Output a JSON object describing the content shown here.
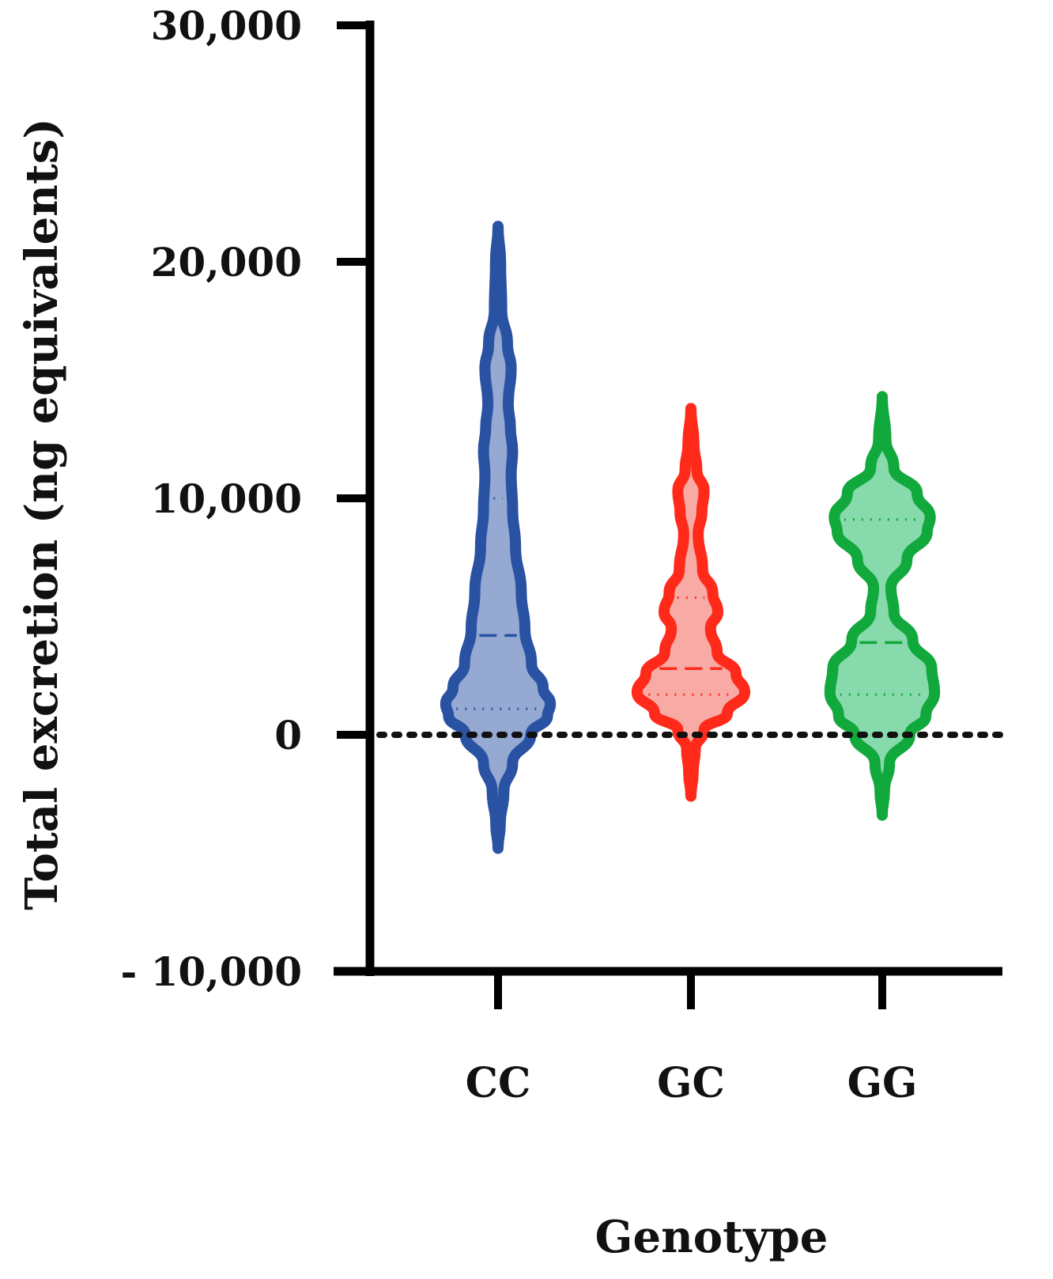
{
  "chart_data": {
    "type": "violin",
    "xlabel": "Genotype",
    "ylabel": "Total excretion (ng equivalents)",
    "ylim": [
      -10000,
      30000
    ],
    "yticks": [
      {
        "value": 30000,
        "label": "30,000"
      },
      {
        "value": 20000,
        "label": "20,000"
      },
      {
        "value": 10000,
        "label": "10,000"
      },
      {
        "value": 0,
        "label": "0"
      },
      {
        "value": -10000,
        "label": "- 10,000"
      }
    ],
    "reference_line": {
      "value": 0,
      "style": "dotted"
    },
    "categories": [
      "CC",
      "GC",
      "GG"
    ],
    "series": [
      {
        "category": "CC",
        "color": "#2a52a3",
        "fill": "#8fa4d1",
        "min": -4800,
        "max": 21500,
        "median": 4200,
        "q1": 1100,
        "q3": 10000,
        "profile": [
          [
            -4800,
            0
          ],
          [
            -3800,
            0.03
          ],
          [
            -2400,
            0.08
          ],
          [
            -1200,
            0.2
          ],
          [
            0,
            0.45
          ],
          [
            800,
            0.68
          ],
          [
            1300,
            0.72
          ],
          [
            2000,
            0.62
          ],
          [
            3000,
            0.46
          ],
          [
            4500,
            0.37
          ],
          [
            6000,
            0.32
          ],
          [
            8000,
            0.24
          ],
          [
            9500,
            0.2
          ],
          [
            11000,
            0.18
          ],
          [
            12000,
            0.2
          ],
          [
            13000,
            0.17
          ],
          [
            14000,
            0.14
          ],
          [
            15500,
            0.18
          ],
          [
            16500,
            0.13
          ],
          [
            18000,
            0.05
          ],
          [
            20000,
            0.035
          ],
          [
            21500,
            0
          ]
        ]
      },
      {
        "category": "GC",
        "color": "#ff2a1a",
        "fill": "#f8a5a0",
        "min": -2600,
        "max": 13800,
        "median": 2800,
        "q1": 1700,
        "q3": 5800,
        "profile": [
          [
            -2600,
            0
          ],
          [
            -1600,
            0.03
          ],
          [
            -600,
            0.06
          ],
          [
            200,
            0.18
          ],
          [
            900,
            0.5
          ],
          [
            1800,
            0.74
          ],
          [
            2600,
            0.62
          ],
          [
            3500,
            0.36
          ],
          [
            4500,
            0.27
          ],
          [
            5200,
            0.37
          ],
          [
            6000,
            0.3
          ],
          [
            7000,
            0.16
          ],
          [
            8500,
            0.1
          ],
          [
            9400,
            0.15
          ],
          [
            10300,
            0.18
          ],
          [
            11200,
            0.08
          ],
          [
            12300,
            0.04
          ],
          [
            13800,
            0
          ]
        ]
      },
      {
        "category": "GG",
        "color": "#11a83c",
        "fill": "#7fd8a6",
        "min": -3400,
        "max": 14300,
        "median": 3900,
        "q1": 1700,
        "q3": 9100,
        "profile": [
          [
            -3400,
            0
          ],
          [
            -2400,
            0.03
          ],
          [
            -1200,
            0.1
          ],
          [
            0,
            0.38
          ],
          [
            800,
            0.6
          ],
          [
            1800,
            0.72
          ],
          [
            2800,
            0.68
          ],
          [
            4000,
            0.42
          ],
          [
            5200,
            0.16
          ],
          [
            6200,
            0.12
          ],
          [
            7400,
            0.34
          ],
          [
            8600,
            0.62
          ],
          [
            9200,
            0.66
          ],
          [
            10200,
            0.48
          ],
          [
            11300,
            0.16
          ],
          [
            12500,
            0.05
          ],
          [
            14300,
            0
          ]
        ]
      }
    ]
  }
}
